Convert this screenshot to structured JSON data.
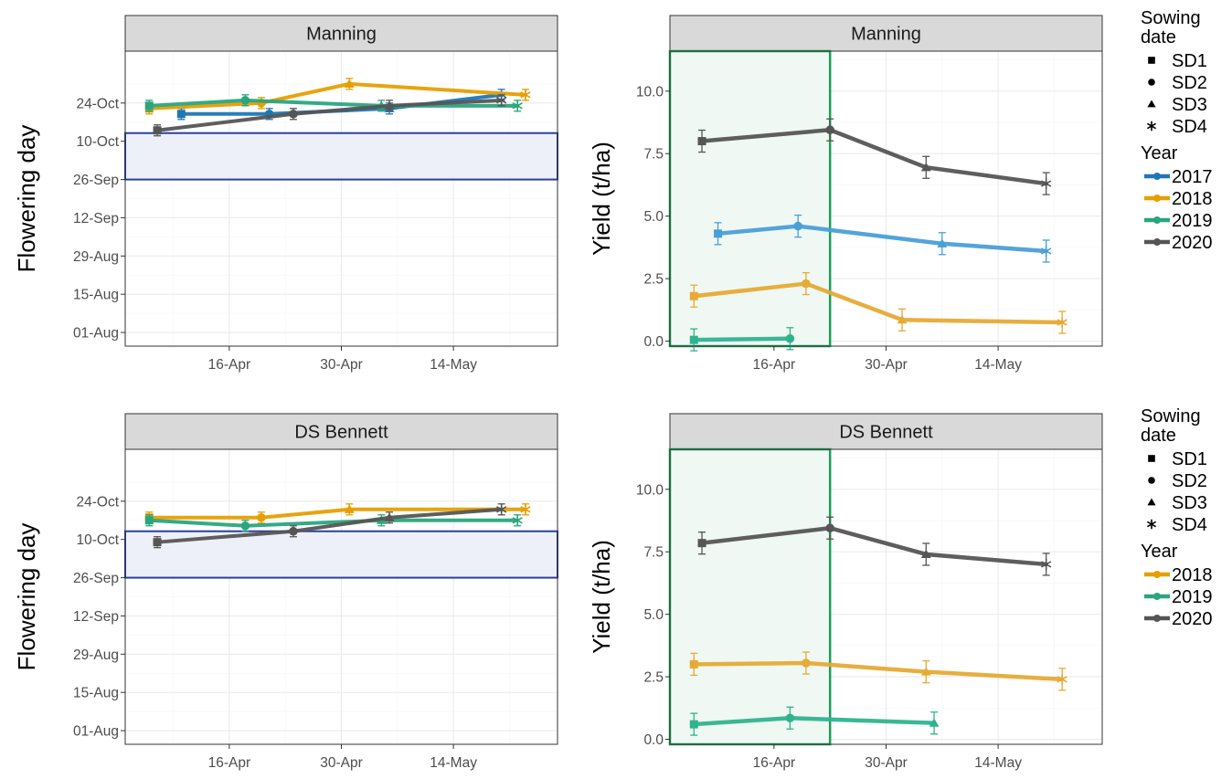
{
  "chart_data": [
    {
      "type": "line",
      "panel": "Manning",
      "ylabel": "Flowering day",
      "x_ticks": [
        "16-Apr",
        "30-Apr",
        "14-May"
      ],
      "y_ticks": [
        "01-Aug",
        "15-Aug",
        "29-Aug",
        "12-Sep",
        "26-Sep",
        "10-Oct",
        "24-Oct"
      ],
      "xlim": [
        "2000-04-03",
        "2000-05-27"
      ],
      "ylim": [
        "2000-07-27",
        "2000-11-12"
      ],
      "highlight_band": [
        "2000-09-26",
        "2000-10-13"
      ],
      "series": [
        {
          "name": "2017",
          "color": "#1f77b4",
          "points": [
            {
              "x": "2000-04-10",
              "y": "2000-10-20",
              "shape": "SD1"
            },
            {
              "x": "2000-04-21",
              "y": "2000-10-20",
              "shape": "SD2"
            },
            {
              "x": "2000-05-06",
              "y": "2000-10-22",
              "shape": "SD3"
            },
            {
              "x": "2000-05-20",
              "y": "2000-10-27",
              "shape": "SD4"
            }
          ]
        },
        {
          "name": "2018",
          "color": "#e69f00",
          "points": [
            {
              "x": "2000-04-06",
              "y": "2000-10-22",
              "shape": "SD1"
            },
            {
              "x": "2000-04-20",
              "y": "2000-10-24",
              "shape": "SD2"
            },
            {
              "x": "2000-05-01",
              "y": "2000-10-31",
              "shape": "SD3"
            },
            {
              "x": "2000-05-23",
              "y": "2000-10-27",
              "shape": "SD4"
            }
          ]
        },
        {
          "name": "2019",
          "color": "#2aa57e",
          "points": [
            {
              "x": "2000-04-06",
              "y": "2000-10-23",
              "shape": "SD1"
            },
            {
              "x": "2000-04-18",
              "y": "2000-10-25",
              "shape": "SD2"
            },
            {
              "x": "2000-05-05",
              "y": "2000-10-23",
              "shape": "SD3"
            },
            {
              "x": "2000-05-22",
              "y": "2000-10-23",
              "shape": "SD4"
            }
          ]
        },
        {
          "name": "2020",
          "color": "#555555",
          "points": [
            {
              "x": "2000-04-07",
              "y": "2000-10-14",
              "shape": "SD1"
            },
            {
              "x": "2000-04-24",
              "y": "2000-10-20",
              "shape": "SD2"
            },
            {
              "x": "2000-05-06",
              "y": "2000-10-23",
              "shape": "SD3"
            },
            {
              "x": "2000-05-20",
              "y": "2000-10-25",
              "shape": "SD4"
            }
          ]
        }
      ]
    },
    {
      "type": "line",
      "panel": "Manning",
      "ylabel": "Yield (t/ha)",
      "x_ticks": [
        "16-Apr",
        "30-Apr",
        "14-May"
      ],
      "y_ticks": [
        "0.0",
        "2.5",
        "5.0",
        "7.5",
        "10.0"
      ],
      "xlim": [
        "2000-04-03",
        "2000-05-27"
      ],
      "ylim": [
        -0.2,
        11.6
      ],
      "highlight_band": [
        "2000-04-03",
        "2000-04-23"
      ],
      "series": [
        {
          "name": "2017",
          "color": "#4a9fd8",
          "points": [
            {
              "x": "2000-04-09",
              "y": 4.3,
              "shape": "SD1"
            },
            {
              "x": "2000-04-19",
              "y": 4.6,
              "shape": "SD2"
            },
            {
              "x": "2000-05-07",
              "y": 3.9,
              "shape": "SD3"
            },
            {
              "x": "2000-05-20",
              "y": 3.6,
              "shape": "SD4"
            }
          ]
        },
        {
          "name": "2018",
          "color": "#e6aa35",
          "points": [
            {
              "x": "2000-04-06",
              "y": 1.8,
              "shape": "SD1"
            },
            {
              "x": "2000-04-20",
              "y": 2.3,
              "shape": "SD2"
            },
            {
              "x": "2000-05-02",
              "y": 0.85,
              "shape": "SD3"
            },
            {
              "x": "2000-05-22",
              "y": 0.75,
              "shape": "SD4"
            }
          ]
        },
        {
          "name": "2019",
          "color": "#2fb38e",
          "points": [
            {
              "x": "2000-04-06",
              "y": 0.05,
              "shape": "SD1"
            },
            {
              "x": "2000-04-18",
              "y": 0.1,
              "shape": "SD2"
            }
          ]
        },
        {
          "name": "2020",
          "color": "#555555",
          "points": [
            {
              "x": "2000-04-07",
              "y": 8.0,
              "shape": "SD1"
            },
            {
              "x": "2000-04-23",
              "y": 8.45,
              "shape": "SD2"
            },
            {
              "x": "2000-05-05",
              "y": 6.95,
              "shape": "SD3"
            },
            {
              "x": "2000-05-20",
              "y": 6.3,
              "shape": "SD4"
            }
          ]
        }
      ]
    },
    {
      "type": "line",
      "panel": "DS Bennett",
      "ylabel": "Flowering day",
      "x_ticks": [
        "16-Apr",
        "30-Apr",
        "14-May"
      ],
      "y_ticks": [
        "01-Aug",
        "15-Aug",
        "29-Aug",
        "12-Sep",
        "26-Sep",
        "10-Oct",
        "24-Oct"
      ],
      "xlim": [
        "2000-04-03",
        "2000-05-27"
      ],
      "ylim": [
        "2000-07-27",
        "2000-11-12"
      ],
      "highlight_band": [
        "2000-09-26",
        "2000-10-13"
      ],
      "series": [
        {
          "name": "2018",
          "color": "#e69f00",
          "points": [
            {
              "x": "2000-04-06",
              "y": "2000-10-18",
              "shape": "SD1"
            },
            {
              "x": "2000-04-20",
              "y": "2000-10-18",
              "shape": "SD2"
            },
            {
              "x": "2000-05-01",
              "y": "2000-10-21",
              "shape": "SD3"
            },
            {
              "x": "2000-05-23",
              "y": "2000-10-21",
              "shape": "SD4"
            }
          ]
        },
        {
          "name": "2019",
          "color": "#2aa57e",
          "points": [
            {
              "x": "2000-04-06",
              "y": "2000-10-17",
              "shape": "SD1"
            },
            {
              "x": "2000-04-18",
              "y": "2000-10-15",
              "shape": "SD2"
            },
            {
              "x": "2000-05-05",
              "y": "2000-10-17",
              "shape": "SD3"
            },
            {
              "x": "2000-05-22",
              "y": "2000-10-17",
              "shape": "SD4"
            }
          ]
        },
        {
          "name": "2020",
          "color": "#555555",
          "points": [
            {
              "x": "2000-04-07",
              "y": "2000-10-09",
              "shape": "SD1"
            },
            {
              "x": "2000-04-24",
              "y": "2000-10-13",
              "shape": "SD2"
            },
            {
              "x": "2000-05-06",
              "y": "2000-10-18",
              "shape": "SD3"
            },
            {
              "x": "2000-05-20",
              "y": "2000-10-21",
              "shape": "SD4"
            }
          ]
        }
      ]
    },
    {
      "type": "line",
      "panel": "DS Bennett",
      "ylabel": "Yield (t/ha)",
      "x_ticks": [
        "16-Apr",
        "30-Apr",
        "14-May"
      ],
      "y_ticks": [
        "0.0",
        "2.5",
        "5.0",
        "7.5",
        "10.0"
      ],
      "xlim": [
        "2000-04-03",
        "2000-05-27"
      ],
      "ylim": [
        -0.2,
        11.6
      ],
      "highlight_band": [
        "2000-04-03",
        "2000-04-23"
      ],
      "series": [
        {
          "name": "2018",
          "color": "#e6aa35",
          "points": [
            {
              "x": "2000-04-06",
              "y": 3.0,
              "shape": "SD1"
            },
            {
              "x": "2000-04-20",
              "y": 3.05,
              "shape": "SD2"
            },
            {
              "x": "2000-05-05",
              "y": 2.7,
              "shape": "SD3"
            },
            {
              "x": "2000-05-22",
              "y": 2.4,
              "shape": "SD4"
            }
          ]
        },
        {
          "name": "2019",
          "color": "#2fb38e",
          "points": [
            {
              "x": "2000-04-06",
              "y": 0.6,
              "shape": "SD1"
            },
            {
              "x": "2000-04-18",
              "y": 0.85,
              "shape": "SD2"
            },
            {
              "x": "2000-05-06",
              "y": 0.65,
              "shape": "SD3"
            }
          ]
        },
        {
          "name": "2020",
          "color": "#555555",
          "points": [
            {
              "x": "2000-04-07",
              "y": 7.85,
              "shape": "SD1"
            },
            {
              "x": "2000-04-23",
              "y": 8.45,
              "shape": "SD2"
            },
            {
              "x": "2000-05-05",
              "y": 7.4,
              "shape": "SD3"
            },
            {
              "x": "2000-05-20",
              "y": 7.0,
              "shape": "SD4"
            }
          ]
        }
      ]
    }
  ],
  "legends": [
    {
      "title_shape": "Sowing date",
      "shapes": [
        {
          "label": "SD1",
          "shape": "square"
        },
        {
          "label": "SD2",
          "shape": "circle"
        },
        {
          "label": "SD3",
          "shape": "triangle"
        },
        {
          "label": "SD4",
          "shape": "asterisk"
        }
      ],
      "title_color": "Year",
      "colors": [
        {
          "label": "2017",
          "color": "#1f77b4"
        },
        {
          "label": "2018",
          "color": "#e69f00"
        },
        {
          "label": "2019",
          "color": "#2aa57e"
        },
        {
          "label": "2020",
          "color": "#555555"
        }
      ]
    },
    {
      "title_shape": "Sowing date",
      "shapes": [
        {
          "label": "SD1",
          "shape": "square"
        },
        {
          "label": "SD2",
          "shape": "circle"
        },
        {
          "label": "SD3",
          "shape": "triangle"
        },
        {
          "label": "SD4",
          "shape": "asterisk"
        }
      ],
      "title_color": "Year",
      "colors": [
        {
          "label": "2018",
          "color": "#e69f00"
        },
        {
          "label": "2019",
          "color": "#2aa57e"
        },
        {
          "label": "2020",
          "color": "#555555"
        }
      ]
    }
  ],
  "colors": {
    "flowering_band_fill": "#eef0f9",
    "flowering_band_stroke": "#2a3f9e",
    "yield_band_fill": "#f0f8f4",
    "yield_band_stroke": "#1e9e5a"
  }
}
